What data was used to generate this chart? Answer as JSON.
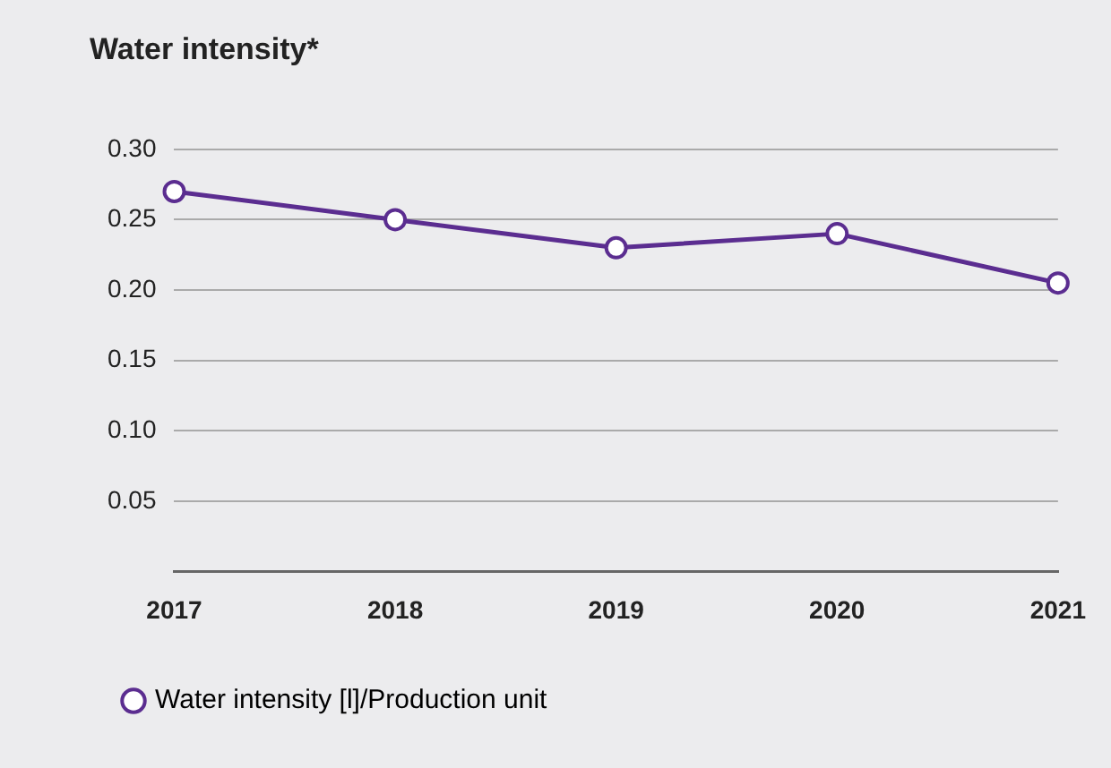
{
  "chart_data": {
    "type": "line",
    "title": "Water intensity*",
    "categories": [
      "2017",
      "2018",
      "2019",
      "2020",
      "2021"
    ],
    "series": [
      {
        "name": "Water intensity [l]/Production unit",
        "color": "#5b2d90",
        "values": [
          0.27,
          0.25,
          0.23,
          0.24,
          0.205
        ]
      }
    ],
    "ylim": [
      0,
      0.3
    ],
    "yticks": [
      {
        "value": 0,
        "label": null
      },
      0.05,
      {
        "value": 0.1,
        "label": "0.10"
      },
      0.15,
      {
        "value": 0.2,
        "label": "0.20"
      },
      0.25,
      {
        "value": 0.3,
        "label": "0.30"
      }
    ],
    "grid": "y",
    "legend": "bottom left",
    "marker": "circle",
    "line_style": "solid"
  }
}
